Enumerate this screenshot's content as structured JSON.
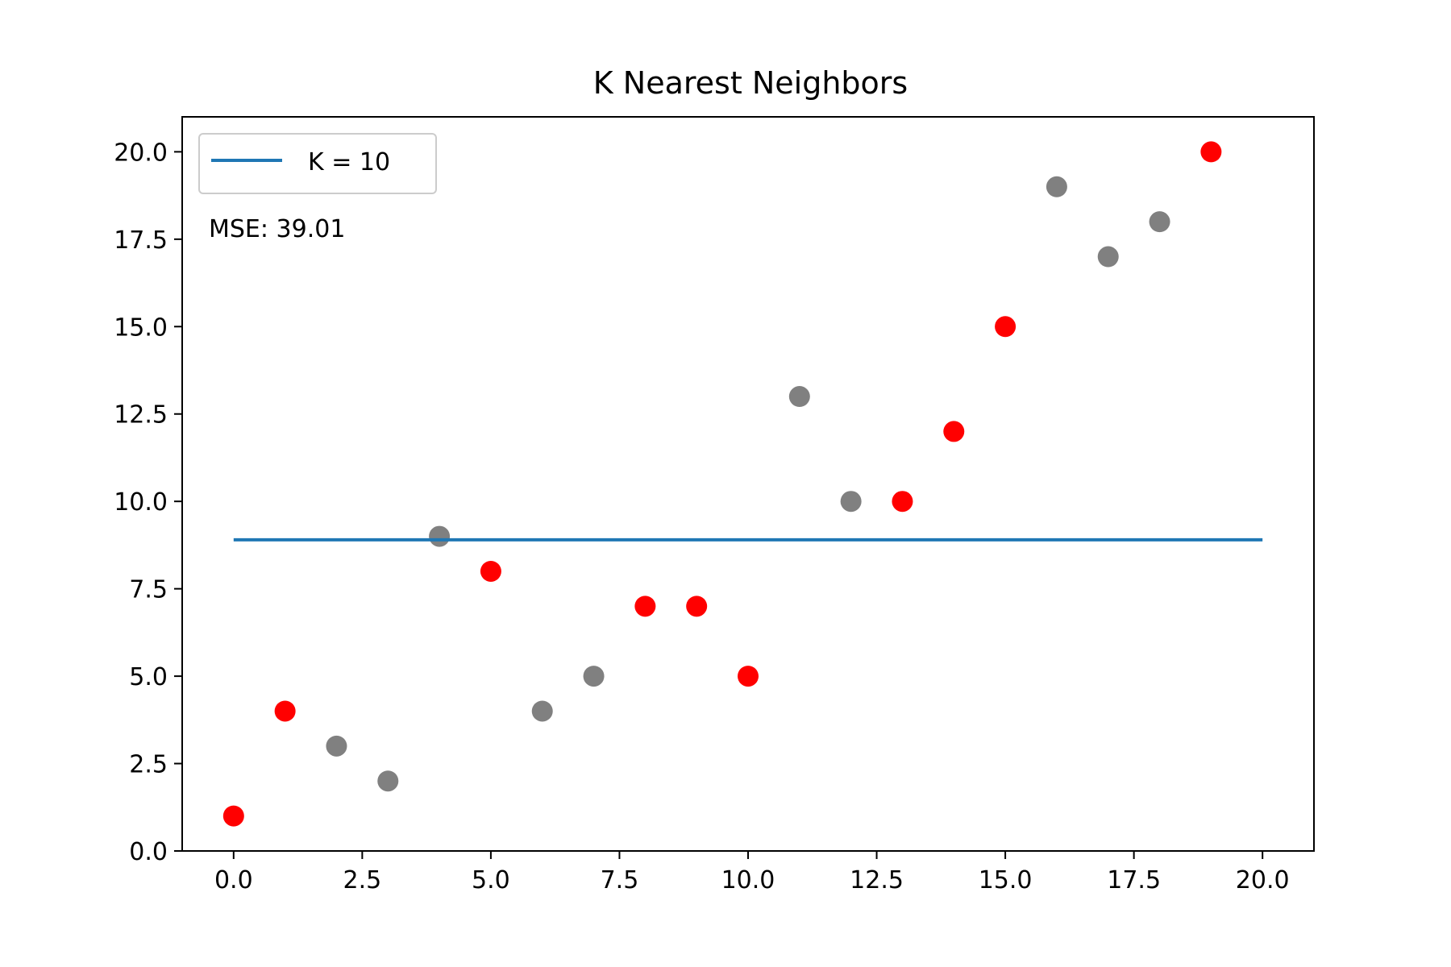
{
  "chart_data": {
    "type": "scatter",
    "title": "K Nearest Neighbors",
    "xlabel": "",
    "ylabel": "",
    "xlim": [
      -1,
      21
    ],
    "ylim": [
      0,
      21
    ],
    "x_ticks": [
      "0.0",
      "2.5",
      "5.0",
      "7.5",
      "10.0",
      "12.5",
      "15.0",
      "17.5",
      "20.0"
    ],
    "y_ticks": [
      "0.0",
      "2.5",
      "5.0",
      "7.5",
      "10.0",
      "12.5",
      "15.0",
      "17.5",
      "20.0"
    ],
    "grid": false,
    "legend_position": "top-left",
    "annotation": "MSE: 39.01",
    "series": [
      {
        "kind": "scatter",
        "color": "#ff0000",
        "points": [
          [
            0,
            1
          ],
          [
            1,
            4
          ],
          [
            5,
            8
          ],
          [
            8,
            7
          ],
          [
            9,
            7
          ],
          [
            10,
            5
          ],
          [
            13,
            10
          ],
          [
            14,
            12
          ],
          [
            15,
            15
          ],
          [
            19,
            20
          ]
        ]
      },
      {
        "kind": "scatter",
        "color": "#808080",
        "points": [
          [
            2,
            3
          ],
          [
            3,
            2
          ],
          [
            4,
            9
          ],
          [
            6,
            4
          ],
          [
            7,
            5
          ],
          [
            11,
            13
          ],
          [
            12,
            10
          ],
          [
            16,
            19
          ],
          [
            17,
            17
          ],
          [
            18,
            18
          ]
        ]
      },
      {
        "kind": "line",
        "name": "K = 10",
        "color": "#1f77b4",
        "x": [
          0,
          20
        ],
        "y": [
          8.9,
          8.9
        ]
      }
    ]
  }
}
